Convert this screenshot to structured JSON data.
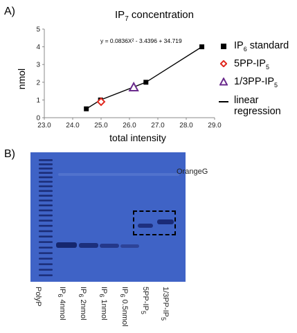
{
  "panel_a_label": "A)",
  "panel_b_label": "B)",
  "chart_data": {
    "type": "scatter",
    "title": "IP",
    "title_sub": "7",
    "title_rest": " concentration",
    "xlabel": "total intensity",
    "ylabel": "nmol",
    "xlim": [
      23.0,
      29.0
    ],
    "ylim": [
      0,
      5
    ],
    "x_ticks": [
      "23.0",
      "24.0",
      "25.0",
      "26.0",
      "27.0",
      "28.0",
      "29.0"
    ],
    "y_ticks": [
      "0",
      "1",
      "2",
      "3",
      "4",
      "5"
    ],
    "equation": "y = 0.0836X² - 3.4396 + 34.719",
    "series": [
      {
        "name": "IP6 standard",
        "marker": "square",
        "color": "#000000",
        "x": [
          24.48,
          24.98,
          26.58,
          28.55
        ],
        "y": [
          0.5,
          1.0,
          2.0,
          4.0
        ]
      },
      {
        "name": "5PP-IP5",
        "marker": "diamond",
        "color": "#e0281e",
        "x": [
          25.0
        ],
        "y": [
          0.9
        ]
      },
      {
        "name": "1/3PP-IP5",
        "marker": "triangle",
        "color": "#6a2a8c",
        "x": [
          26.15
        ],
        "y": [
          1.72
        ]
      }
    ],
    "fit": {
      "name": "linear regression",
      "a": 0.0836,
      "b": -3.4396,
      "c": 34.719,
      "x_range": [
        24.48,
        28.55
      ]
    },
    "grid": false,
    "legend_position": "right"
  },
  "legend": {
    "items": [
      {
        "pre": "IP",
        "sub": "6",
        "post": " standard"
      },
      {
        "pre": "5PP-IP",
        "sub": "5",
        "post": ""
      },
      {
        "pre": "1/3PP-IP",
        "sub": "5",
        "post": ""
      },
      {
        "pre": "linear regression",
        "sub": "",
        "post": ""
      }
    ]
  },
  "gel": {
    "marker_label": "OrangeG",
    "lanes": [
      {
        "pre": "PolyP",
        "sub": "",
        "post": ""
      },
      {
        "pre": "IP",
        "sub": "6",
        "post": " 4nmol"
      },
      {
        "pre": "IP",
        "sub": "6",
        "post": " 2nmol"
      },
      {
        "pre": "IP",
        "sub": "6",
        "post": " 1nmol"
      },
      {
        "pre": "IP",
        "sub": "6",
        "post": " 0.5nmol"
      },
      {
        "pre": "5PP-IP",
        "sub": "5",
        "post": ""
      },
      {
        "pre": "1/3PP-IP",
        "sub": "5",
        "post": ""
      }
    ]
  }
}
